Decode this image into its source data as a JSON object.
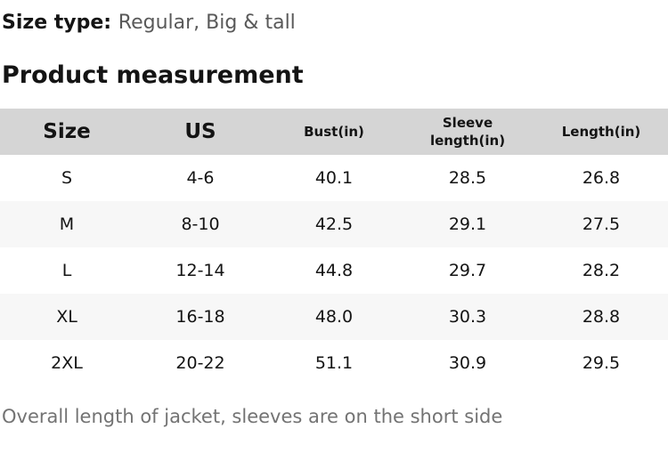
{
  "page": {
    "size_type_label": "Size type:",
    "size_type_value": "Regular, Big & tall",
    "section_title": "Product measurement",
    "footnote": "Overall length of jacket, sleeves are on the short side"
  },
  "table": {
    "columns": [
      "Size",
      "US",
      "Bust(in)",
      "Sleeve length(in)",
      "Length(in)"
    ],
    "rows": [
      [
        "S",
        "4-6",
        "40.1",
        "28.5",
        "26.8"
      ],
      [
        "M",
        "8-10",
        "42.5",
        "29.1",
        "27.5"
      ],
      [
        "L",
        "12-14",
        "44.8",
        "29.7",
        "28.2"
      ],
      [
        "XL",
        "16-18",
        "48.0",
        "30.3",
        "28.8"
      ],
      [
        "2XL",
        "20-22",
        "51.1",
        "30.9",
        "29.5"
      ]
    ]
  },
  "colors": {
    "header_bg": "#d5d5d5",
    "stripe_bg": "#f7f7f7",
    "body_text": "#141414",
    "muted_text": "#595959",
    "footnote_text": "#737373"
  }
}
